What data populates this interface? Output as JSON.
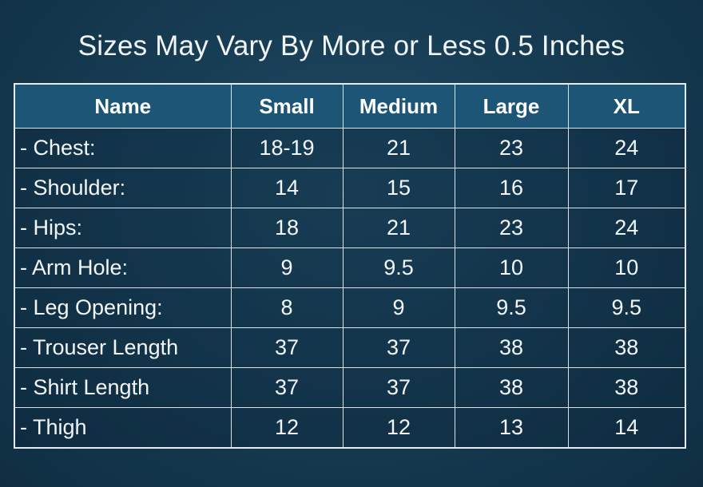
{
  "title": "Sizes May Vary By More or Less 0.5 Inches",
  "table": {
    "headers": [
      "Name",
      "Small",
      "Medium",
      "Large",
      "XL"
    ],
    "rows": [
      {
        "label": "- Chest:",
        "values": [
          "18-19",
          "21",
          "23",
          "24"
        ]
      },
      {
        "label": "- Shoulder:",
        "values": [
          "14",
          "15",
          "16",
          "17"
        ]
      },
      {
        "label": "- Hips:",
        "values": [
          "18",
          "21",
          "23",
          "24"
        ]
      },
      {
        "label": "- Arm Hole:",
        "values": [
          "9",
          "9.5",
          "10",
          "10"
        ]
      },
      {
        "label": "- Leg Opening:",
        "values": [
          "8",
          "9",
          "9.5",
          "9.5"
        ]
      },
      {
        "label": "- Trouser Length",
        "values": [
          "37",
          "37",
          "38",
          "38"
        ]
      },
      {
        "label": "- Shirt Length",
        "values": [
          "37",
          "37",
          "38",
          "38"
        ]
      },
      {
        "label": "- Thigh",
        "values": [
          "12",
          "12",
          "13",
          "14"
        ]
      }
    ]
  },
  "colors": {
    "background": "#173d54",
    "header_fill": "#1d5576",
    "grid_lines": "#d9e3ea",
    "text": "#ffffff"
  }
}
